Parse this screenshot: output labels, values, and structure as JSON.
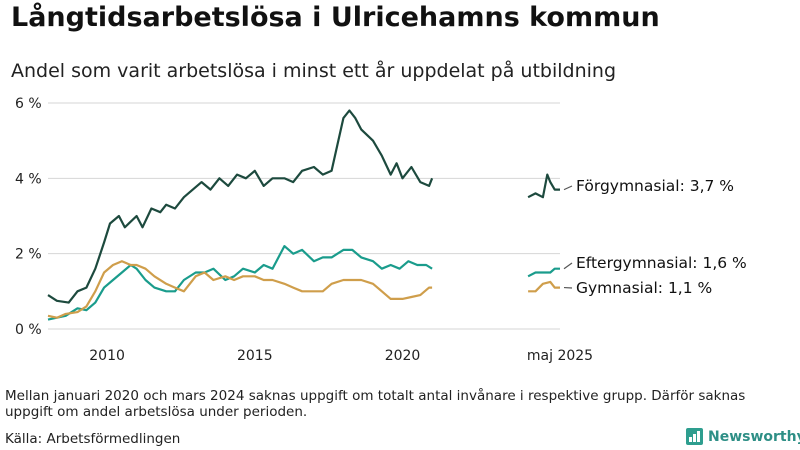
{
  "header": {
    "title": "Långtidsarbetslösa i Ulricehamns kommun",
    "subtitle": "Andel som varit arbetslösa i minst ett år uppdelat på utbildning"
  },
  "footer": {
    "note": "Mellan januari 2020 och mars 2024 saknas uppgift om totalt antal invånare i respektive grupp. Därför saknas uppgift om andel arbetslösa under perioden.",
    "source": "Källa: Arbetsförmedlingen",
    "brand": "Newsworthy"
  },
  "colors": {
    "forgymnasial": "#1d4a3e",
    "eftergymnasial": "#1a9c8c",
    "gymnasial": "#cf9e4b"
  },
  "chart_data": {
    "type": "line",
    "title": "Långtidsarbetslösa i Ulricehamns kommun",
    "subtitle": "Andel som varit arbetslösa i minst ett år uppdelat på utbildning",
    "y_unit": "%",
    "ylim": [
      0,
      6
    ],
    "y_ticks": [
      0,
      2,
      4,
      6
    ],
    "y_tick_labels": [
      "0 %",
      "2 %",
      "4 %",
      "6 %"
    ],
    "x_ticks": [
      2010,
      2015,
      2020,
      2025.33
    ],
    "x_tick_labels": [
      "2010",
      "2015",
      "2020",
      "maj 2025"
    ],
    "grid": "horizontal",
    "series": [
      {
        "name": "Förgymnasial",
        "end_label": "Förgymnasial: 3,7 %",
        "color": "#1d4a3e",
        "segments": [
          [
            [
              2008.0,
              0.9
            ],
            [
              2008.3,
              0.75
            ],
            [
              2008.7,
              0.7
            ],
            [
              2009.0,
              1.0
            ],
            [
              2009.3,
              1.1
            ],
            [
              2009.6,
              1.6
            ],
            [
              2009.9,
              2.3
            ],
            [
              2010.1,
              2.8
            ],
            [
              2010.4,
              3.0
            ],
            [
              2010.6,
              2.7
            ],
            [
              2011.0,
              3.0
            ],
            [
              2011.2,
              2.7
            ],
            [
              2011.5,
              3.2
            ],
            [
              2011.8,
              3.1
            ],
            [
              2012.0,
              3.3
            ],
            [
              2012.3,
              3.2
            ],
            [
              2012.6,
              3.5
            ],
            [
              2012.9,
              3.7
            ],
            [
              2013.2,
              3.9
            ],
            [
              2013.5,
              3.7
            ],
            [
              2013.8,
              4.0
            ],
            [
              2014.1,
              3.8
            ],
            [
              2014.4,
              4.1
            ],
            [
              2014.7,
              4.0
            ],
            [
              2015.0,
              4.2
            ],
            [
              2015.3,
              3.8
            ],
            [
              2015.6,
              4.0
            ],
            [
              2016.0,
              4.0
            ],
            [
              2016.3,
              3.9
            ],
            [
              2016.6,
              4.2
            ],
            [
              2017.0,
              4.3
            ],
            [
              2017.3,
              4.1
            ],
            [
              2017.6,
              4.2
            ],
            [
              2017.8,
              4.9
            ],
            [
              2018.0,
              5.6
            ],
            [
              2018.2,
              5.8
            ],
            [
              2018.4,
              5.6
            ],
            [
              2018.6,
              5.3
            ],
            [
              2019.0,
              5.0
            ],
            [
              2019.3,
              4.6
            ],
            [
              2019.6,
              4.1
            ],
            [
              2019.8,
              4.4
            ],
            [
              2020.0,
              4.0
            ],
            [
              2020.3,
              4.3
            ],
            [
              2020.6,
              3.9
            ],
            [
              2020.9,
              3.8
            ],
            [
              2021.0,
              4.0
            ]
          ],
          [
            [
              2024.25,
              3.5
            ],
            [
              2024.5,
              3.6
            ],
            [
              2024.75,
              3.5
            ],
            [
              2024.9,
              4.1
            ],
            [
              2025.0,
              3.9
            ],
            [
              2025.15,
              3.7
            ],
            [
              2025.33,
              3.7
            ]
          ]
        ]
      },
      {
        "name": "Eftergymnasial",
        "end_label": "Eftergymnasial: 1,6 %",
        "color": "#1a9c8c",
        "segments": [
          [
            [
              2008.0,
              0.25
            ],
            [
              2008.3,
              0.3
            ],
            [
              2008.6,
              0.35
            ],
            [
              2009.0,
              0.55
            ],
            [
              2009.3,
              0.5
            ],
            [
              2009.6,
              0.7
            ],
            [
              2009.9,
              1.1
            ],
            [
              2010.2,
              1.3
            ],
            [
              2010.5,
              1.5
            ],
            [
              2010.8,
              1.7
            ],
            [
              2011.0,
              1.6
            ],
            [
              2011.3,
              1.3
            ],
            [
              2011.6,
              1.1
            ],
            [
              2012.0,
              1.0
            ],
            [
              2012.3,
              1.0
            ],
            [
              2012.6,
              1.3
            ],
            [
              2013.0,
              1.5
            ],
            [
              2013.3,
              1.5
            ],
            [
              2013.6,
              1.6
            ],
            [
              2014.0,
              1.3
            ],
            [
              2014.3,
              1.4
            ],
            [
              2014.6,
              1.6
            ],
            [
              2015.0,
              1.5
            ],
            [
              2015.3,
              1.7
            ],
            [
              2015.6,
              1.6
            ],
            [
              2016.0,
              2.2
            ],
            [
              2016.3,
              2.0
            ],
            [
              2016.6,
              2.1
            ],
            [
              2017.0,
              1.8
            ],
            [
              2017.3,
              1.9
            ],
            [
              2017.6,
              1.9
            ],
            [
              2018.0,
              2.1
            ],
            [
              2018.3,
              2.1
            ],
            [
              2018.6,
              1.9
            ],
            [
              2019.0,
              1.8
            ],
            [
              2019.3,
              1.6
            ],
            [
              2019.6,
              1.7
            ],
            [
              2019.9,
              1.6
            ],
            [
              2020.2,
              1.8
            ],
            [
              2020.5,
              1.7
            ],
            [
              2020.8,
              1.7
            ],
            [
              2021.0,
              1.6
            ]
          ],
          [
            [
              2024.25,
              1.4
            ],
            [
              2024.5,
              1.5
            ],
            [
              2024.75,
              1.5
            ],
            [
              2025.0,
              1.5
            ],
            [
              2025.15,
              1.6
            ],
            [
              2025.33,
              1.6
            ]
          ]
        ]
      },
      {
        "name": "Gymnasial",
        "end_label": "Gymnasial: 1,1 %",
        "color": "#cf9e4b",
        "segments": [
          [
            [
              2008.0,
              0.35
            ],
            [
              2008.3,
              0.3
            ],
            [
              2008.6,
              0.4
            ],
            [
              2009.0,
              0.45
            ],
            [
              2009.3,
              0.6
            ],
            [
              2009.6,
              1.0
            ],
            [
              2009.9,
              1.5
            ],
            [
              2010.2,
              1.7
            ],
            [
              2010.5,
              1.8
            ],
            [
              2010.8,
              1.7
            ],
            [
              2011.0,
              1.7
            ],
            [
              2011.3,
              1.6
            ],
            [
              2011.6,
              1.4
            ],
            [
              2012.0,
              1.2
            ],
            [
              2012.3,
              1.1
            ],
            [
              2012.6,
              1.0
            ],
            [
              2013.0,
              1.4
            ],
            [
              2013.3,
              1.5
            ],
            [
              2013.6,
              1.3
            ],
            [
              2014.0,
              1.4
            ],
            [
              2014.3,
              1.3
            ],
            [
              2014.6,
              1.4
            ],
            [
              2015.0,
              1.4
            ],
            [
              2015.3,
              1.3
            ],
            [
              2015.6,
              1.3
            ],
            [
              2016.0,
              1.2
            ],
            [
              2016.3,
              1.1
            ],
            [
              2016.6,
              1.0
            ],
            [
              2017.0,
              1.0
            ],
            [
              2017.3,
              1.0
            ],
            [
              2017.6,
              1.2
            ],
            [
              2018.0,
              1.3
            ],
            [
              2018.3,
              1.3
            ],
            [
              2018.6,
              1.3
            ],
            [
              2019.0,
              1.2
            ],
            [
              2019.3,
              1.0
            ],
            [
              2019.6,
              0.8
            ],
            [
              2020.0,
              0.8
            ],
            [
              2020.3,
              0.85
            ],
            [
              2020.6,
              0.9
            ],
            [
              2020.9,
              1.1
            ],
            [
              2021.0,
              1.1
            ]
          ],
          [
            [
              2024.25,
              1.0
            ],
            [
              2024.5,
              1.0
            ],
            [
              2024.75,
              1.2
            ],
            [
              2025.0,
              1.25
            ],
            [
              2025.15,
              1.1
            ],
            [
              2025.33,
              1.1
            ]
          ]
        ]
      }
    ]
  }
}
